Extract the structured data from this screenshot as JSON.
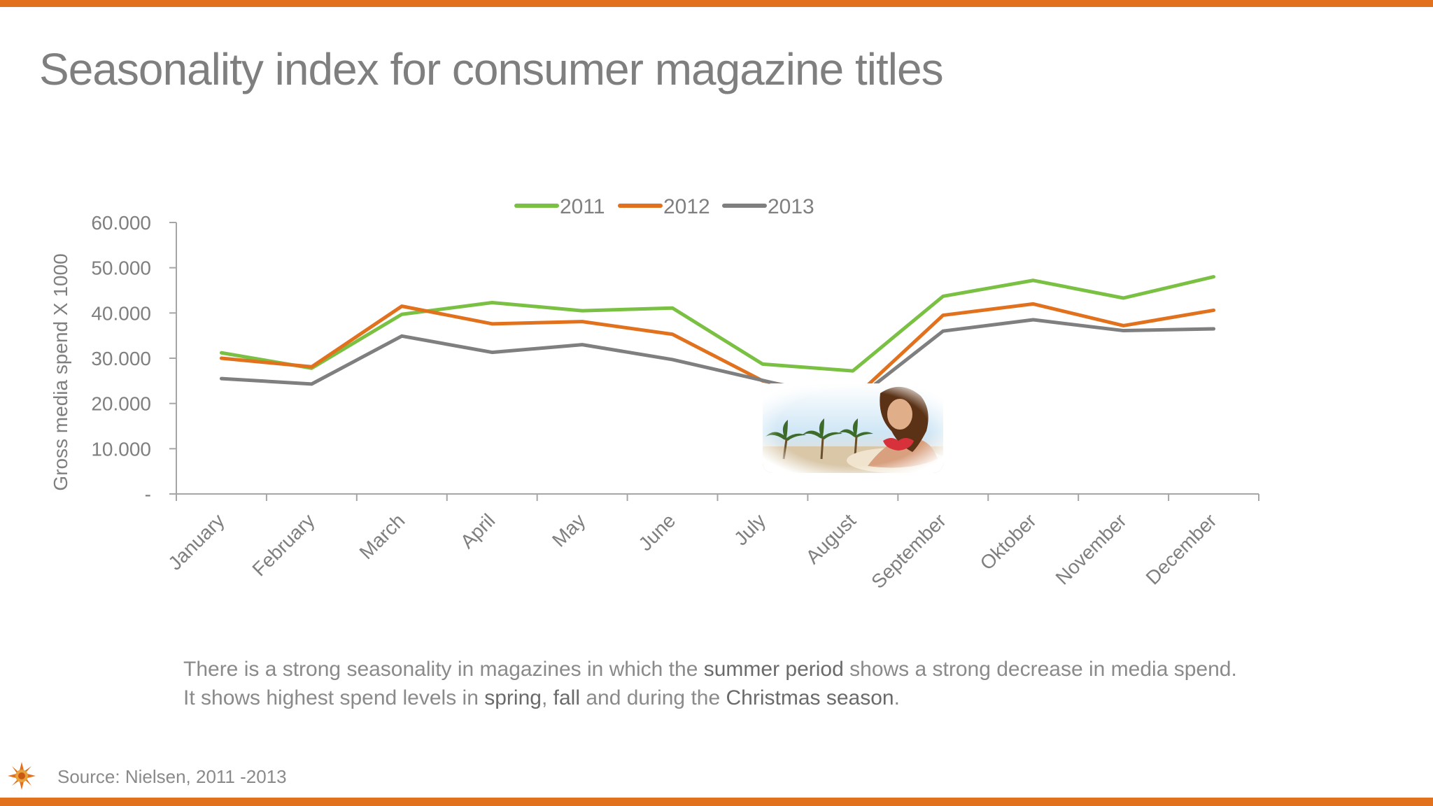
{
  "page": {
    "title": "Seasonality index for consumer magazine titles",
    "description": {
      "part1": "There is a strong seasonality in magazines in which the ",
      "hl1": "summer period",
      "part2": " shows a strong decrease in media spend. It shows highest spend levels in ",
      "hl2": "spring",
      "part3": ", ",
      "hl3": "fall",
      "part4": " and during the ",
      "hl4": "Christmas season",
      "part5": "."
    },
    "source": "Source: Nielsen, 2011 -2013",
    "colors": {
      "accent_bar": "#e2711d",
      "text": "#7f7f7f"
    },
    "icons": {
      "logo": "sun-logo-icon",
      "photo": "beach-woman-photo"
    }
  },
  "chart_data": {
    "type": "line",
    "title": "",
    "xlabel": "",
    "ylabel": "Gross media spend X 1000",
    "categories": [
      "January",
      "February",
      "March",
      "April",
      "May",
      "June",
      "July",
      "August",
      "September",
      "Oktober",
      "November",
      "December"
    ],
    "ylim": [
      0,
      60000
    ],
    "yticks": [
      0,
      10000,
      20000,
      30000,
      40000,
      50000,
      60000
    ],
    "ytick_labels": [
      "-",
      "10.000",
      "20.000",
      "30.000",
      "40.000",
      "50.000",
      "60.000"
    ],
    "legend_position": "top-center",
    "grid": false,
    "series": [
      {
        "name": "2011",
        "color": "#7ac143",
        "values": [
          31200,
          27800,
          39700,
          42300,
          40500,
          41100,
          28700,
          27200,
          43700,
          47200,
          43300,
          48000
        ]
      },
      {
        "name": "2012",
        "color": "#e2711d",
        "values": [
          30000,
          28100,
          41500,
          37600,
          38100,
          35300,
          25000,
          21000,
          39500,
          42000,
          37200,
          40600
        ]
      },
      {
        "name": "2013",
        "color": "#7f7f7f",
        "values": [
          25500,
          24300,
          34900,
          31300,
          33000,
          29700,
          25100,
          20400,
          36000,
          38500,
          36100,
          36500
        ]
      }
    ]
  }
}
